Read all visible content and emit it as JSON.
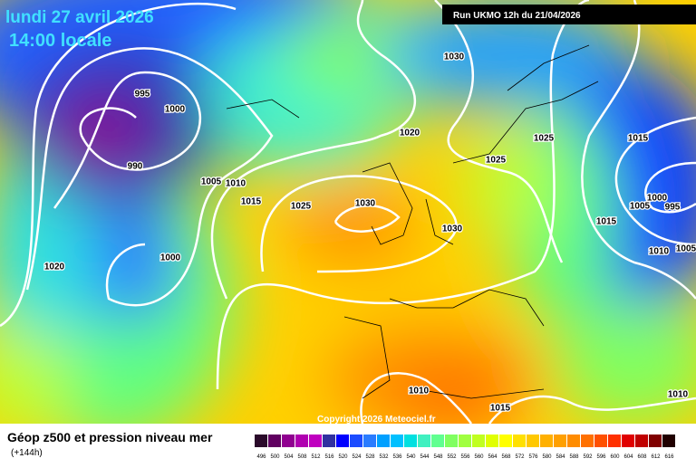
{
  "header": {
    "date": "lundi 27 avril 2026",
    "time": "14:00 locale",
    "run": "Run UKMO 12h du 21/04/2026"
  },
  "map": {
    "isobar_labels": [
      "995",
      "1000",
      "990",
      "1005",
      "1010",
      "1015",
      "1025",
      "1030",
      "1020",
      "1030",
      "1030",
      "1000",
      "1020",
      "1025",
      "1025",
      "1015",
      "1000",
      "1005",
      "995",
      "1015",
      "1010",
      "1005",
      "1010",
      "1015",
      "1010"
    ],
    "copyright": "Copyright 2026 Meteociel.fr"
  },
  "legend": {
    "title": "Géop z500 et pression niveau mer",
    "subtitle": "(+144h)",
    "scale": [
      "496",
      "500",
      "504",
      "508",
      "512",
      "516",
      "520",
      "524",
      "528",
      "532",
      "536",
      "540",
      "544",
      "548",
      "552",
      "556",
      "560",
      "564",
      "568",
      "572",
      "576",
      "580",
      "584",
      "588",
      "592",
      "596",
      "600",
      "604",
      "608",
      "612",
      "616"
    ]
  }
}
